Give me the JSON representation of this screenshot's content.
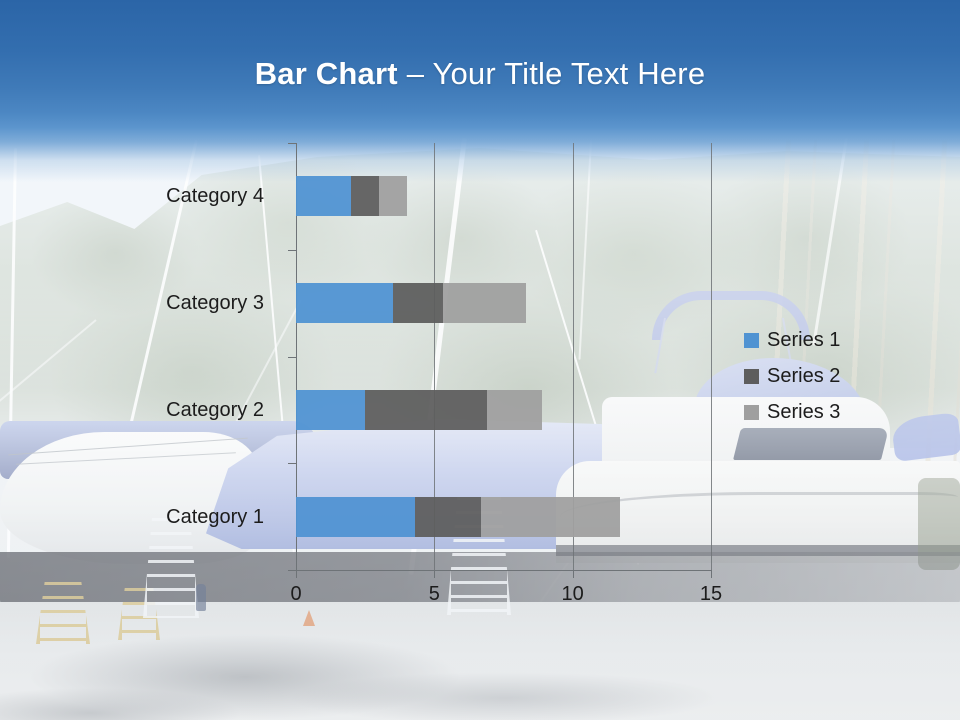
{
  "title": {
    "bold": "Bar Chart",
    "regular": "– Your Title Text Here"
  },
  "chart_data": {
    "type": "bar",
    "orientation": "horizontal",
    "stacked": true,
    "title": "",
    "xlabel": "",
    "ylabel": "",
    "categories": [
      "Category 1",
      "Category 2",
      "Category 3",
      "Category 4"
    ],
    "series": [
      {
        "name": "Series 1",
        "color": "#5093d2",
        "values": [
          4.3,
          2.5,
          3.5,
          2
        ]
      },
      {
        "name": "Series 2",
        "color": "#5d5d5d",
        "values": [
          2.4,
          4.4,
          1.8,
          1
        ]
      },
      {
        "name": "Series 3",
        "color": "#9f9f9f",
        "values": [
          5,
          2,
          3,
          1
        ]
      }
    ],
    "xlim": [
      0,
      15
    ],
    "xticks": [
      0,
      5,
      10,
      15
    ],
    "grid": true,
    "legend_position": "middle-right"
  },
  "colors": {
    "header_blue_top": "#2b65a7",
    "header_blue_bottom": "#5c95cd",
    "axis_gray": "#6e7377",
    "text": "#1c1c1c"
  }
}
